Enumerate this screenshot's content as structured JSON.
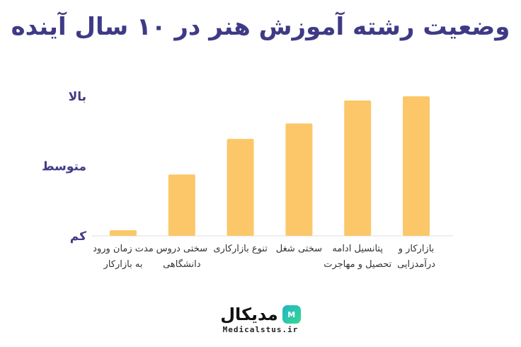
{
  "chart_data": {
    "type": "bar",
    "title": "وضعیت رشته آموزش هنر در ۱۰ سال آینده",
    "categories": [
      "بازارکار و درآمدزایی",
      "پتانسیل ادامه تحصیل و مهاجرت",
      "سختی شغل",
      "تنوع بازارکاری",
      "سختی دروس دانشگاهی",
      "مدت زمان ورود به بازارکار"
    ],
    "values": [
      2.0,
      1.94,
      1.61,
      1.39,
      0.88,
      0.08
    ],
    "y_ticks": [
      {
        "value": 0,
        "label": "کم"
      },
      {
        "value": 1,
        "label": "متوسط"
      },
      {
        "value": 2,
        "label": "بالا"
      }
    ],
    "ylim": [
      0,
      2
    ],
    "grid": false,
    "bar_color": "#fbc769"
  },
  "brand": {
    "name": "مدیکال",
    "logo_text": "M",
    "url": "Medicalstus.ir"
  }
}
